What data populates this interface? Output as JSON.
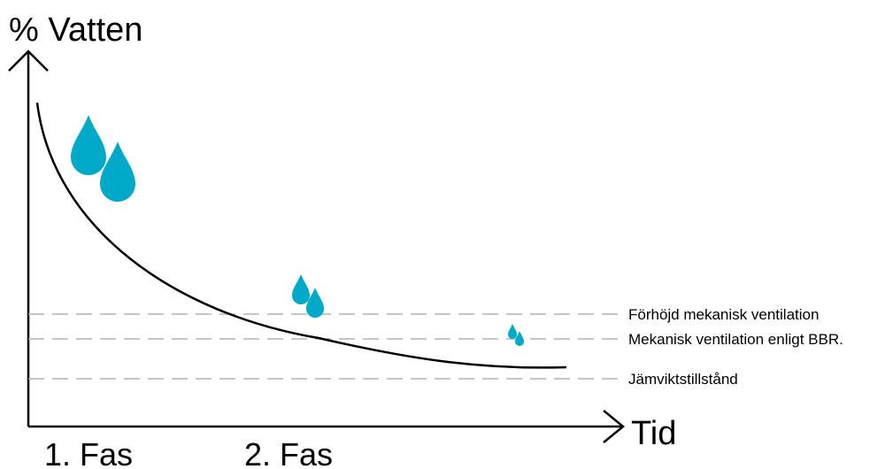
{
  "diagram": {
    "y_axis_label": "% Vatten",
    "x_axis_label": "Tid",
    "phases": [
      {
        "label": "1. Fas"
      },
      {
        "label": "2. Fas"
      }
    ],
    "levels": [
      {
        "label": "Förhöjd mekanisk ventilation"
      },
      {
        "label": "Mekanisk ventilation enligt BBR."
      },
      {
        "label": "Jämviktstillstånd"
      }
    ],
    "colors": {
      "drop": "#00a9c8",
      "curve": "#000000",
      "axis": "#000000",
      "level_line": "#b4b4b4"
    },
    "icons": [
      "water-drop-icon"
    ]
  }
}
